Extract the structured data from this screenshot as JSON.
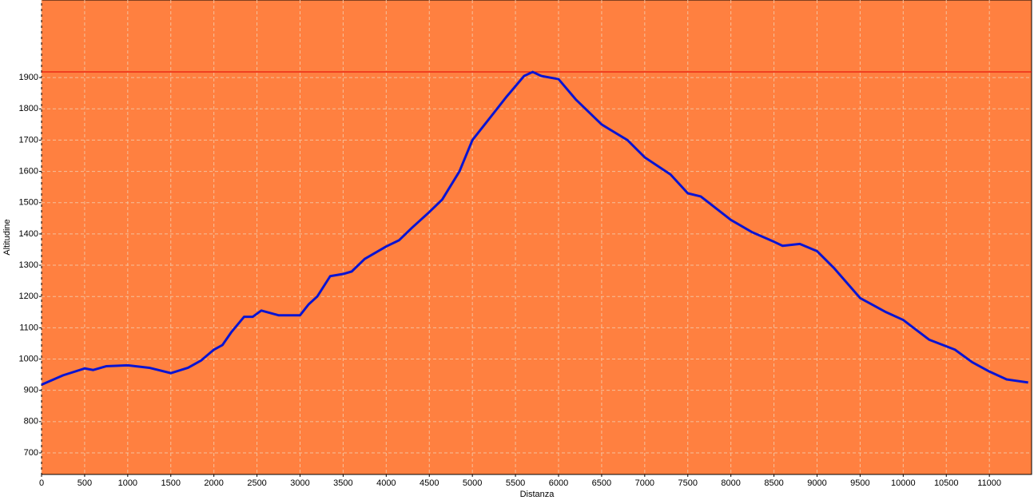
{
  "chart_data": {
    "type": "line",
    "xlabel": "Distanza",
    "ylabel": "Altitudine",
    "x": [
      0,
      250,
      500,
      600,
      750,
      1000,
      1250,
      1500,
      1700,
      1850,
      2000,
      2100,
      2200,
      2350,
      2450,
      2550,
      2750,
      3000,
      3100,
      3200,
      3350,
      3500,
      3600,
      3750,
      4000,
      4150,
      4300,
      4500,
      4650,
      4850,
      5000,
      5200,
      5400,
      5600,
      5700,
      5800,
      6000,
      6200,
      6500,
      6800,
      7000,
      7300,
      7500,
      7650,
      8000,
      8250,
      8500,
      8600,
      8800,
      9000,
      9200,
      9500,
      9800,
      10000,
      10300,
      10600,
      10800,
      11000,
      11200,
      11450
    ],
    "series": [
      {
        "color": "#0a14d2",
        "values": [
          918,
          948,
          970,
          965,
          977,
          980,
          972,
          955,
          972,
          995,
          1030,
          1045,
          1085,
          1135,
          1135,
          1155,
          1140,
          1140,
          1175,
          1200,
          1265,
          1272,
          1280,
          1320,
          1360,
          1380,
          1420,
          1470,
          1510,
          1600,
          1700,
          1770,
          1840,
          1905,
          1918,
          1905,
          1895,
          1830,
          1750,
          1700,
          1645,
          1590,
          1530,
          1520,
          1445,
          1405,
          1375,
          1362,
          1368,
          1345,
          1290,
          1195,
          1150,
          1125,
          1062,
          1030,
          990,
          960,
          935,
          925
        ]
      }
    ],
    "hline": 1918,
    "hline_color": "#e00000",
    "background": "#ff8040",
    "grid": true,
    "xlim": [
      0,
      11490
    ],
    "ylim": [
      631,
      2148
    ],
    "xticks": [
      0,
      500,
      1000,
      1500,
      2000,
      2500,
      3000,
      3500,
      4000,
      4500,
      5000,
      5500,
      6000,
      6500,
      7000,
      7500,
      8000,
      8500,
      9000,
      9500,
      10000,
      10500,
      11000
    ],
    "yticks": [
      700,
      800,
      900,
      1000,
      1100,
      1200,
      1300,
      1400,
      1500,
      1600,
      1700,
      1800,
      1900
    ]
  }
}
